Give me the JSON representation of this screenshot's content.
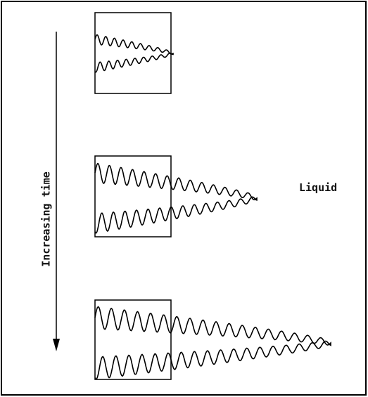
{
  "labels": {
    "axis": "Increasing time",
    "region": "Liquid"
  }
}
